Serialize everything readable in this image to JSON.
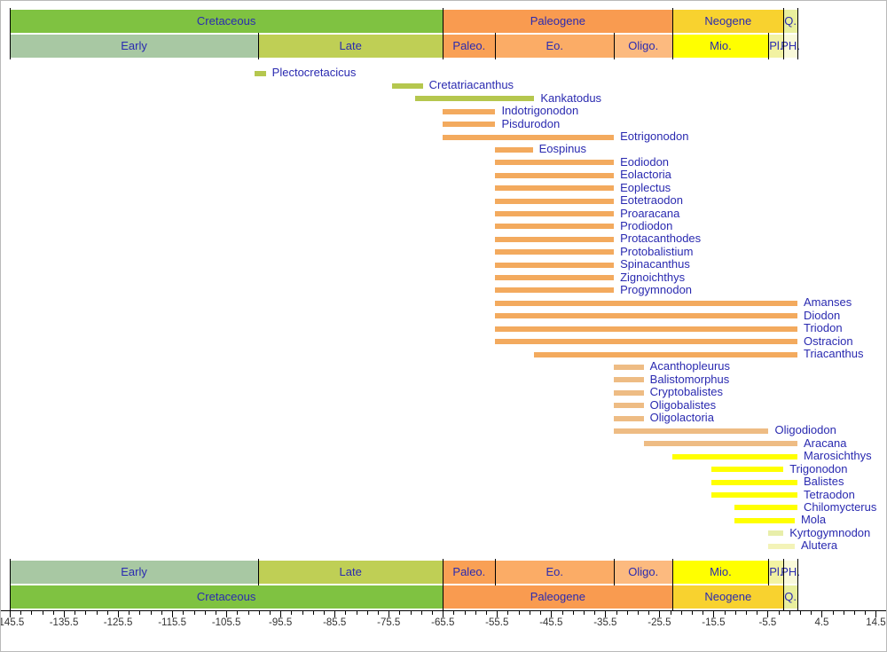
{
  "chart_data": {
    "type": "bar",
    "variant": "horizontal-range-timeline",
    "title": "",
    "xlabel": "",
    "ylabel": "",
    "x_axis": {
      "min": -145.5,
      "max": 14.5,
      "major_step": 10,
      "minor_step": 2,
      "tick_labels": [
        "-145.5",
        "-135.5",
        "-125.5",
        "-115.5",
        "-105.5",
        "-95.5",
        "-85.5",
        "-75.5",
        "-65.5",
        "-55.5",
        "-45.5",
        "-35.5",
        "-25.5",
        "-15.5",
        "-5.5",
        "4.5",
        "14.5"
      ]
    },
    "colors": {
      "cretaceous": "#7fc241",
      "paleogene": "#f99b50",
      "neogene": "#f8d22f",
      "quaternary": "#e9ef9d",
      "early_cretaceous": "#a8c8a3",
      "late_cretaceous": "#bfcf55",
      "paleocene": "#f9a055",
      "eocene": "#fbac66",
      "oligocene": "#fcba7f",
      "miocene": "#ffff00",
      "pliocene": "#f2f2a2",
      "ph": "#f9f9da",
      "cretaceous_taxon": "#b5c74e",
      "paleogene_taxon": "#f3aa5e",
      "oligocene_taxon": "#eebc84",
      "neogene_taxon": "#ffff00",
      "pliocene_taxon_green": "#e8eeaa",
      "pliocene_taxon_pale": "#f3f3b8",
      "label_text": "#2a2ab0",
      "axis_text": "#333333"
    },
    "periods": [
      {
        "name": "Cretaceous",
        "start": -145.5,
        "end": -65.5,
        "color": "cretaceous"
      },
      {
        "name": "Paleogene",
        "start": -65.5,
        "end": -23.03,
        "color": "paleogene"
      },
      {
        "name": "Neogene",
        "start": -23.03,
        "end": -2.588,
        "color": "neogene"
      },
      {
        "name": "Q.",
        "start": -2.588,
        "end": 0,
        "color": "quaternary"
      }
    ],
    "epochs": [
      {
        "name": "Early",
        "start": -145.5,
        "end": -99.6,
        "color": "early_cretaceous"
      },
      {
        "name": "Late",
        "start": -99.6,
        "end": -65.5,
        "color": "late_cretaceous"
      },
      {
        "name": "Paleo.",
        "start": -65.5,
        "end": -55.8,
        "color": "paleocene"
      },
      {
        "name": "Eo.",
        "start": -55.8,
        "end": -33.9,
        "color": "eocene"
      },
      {
        "name": "Oligo.",
        "start": -33.9,
        "end": -23.03,
        "color": "oligocene"
      },
      {
        "name": "Mio.",
        "start": -23.03,
        "end": -5.33,
        "color": "miocene"
      },
      {
        "name": "Pl.",
        "start": -5.33,
        "end": -2.588,
        "color": "pliocene"
      },
      {
        "name": "PH.",
        "start": -2.588,
        "end": 0,
        "color": "ph"
      }
    ],
    "taxa": [
      {
        "name": "Plectocretacicus",
        "start": -100.2,
        "end": -98.2,
        "color": "cretaceous_taxon"
      },
      {
        "name": "Cretatriacanthus",
        "start": -74.9,
        "end": -69.2,
        "color": "cretaceous_taxon"
      },
      {
        "name": "Kankatodus",
        "start": -70.6,
        "end": -48.6,
        "color": "cretaceous_taxon"
      },
      {
        "name": "Indotrigonodon",
        "start": -65.5,
        "end": -55.8,
        "color": "paleogene_taxon"
      },
      {
        "name": "Pisdurodon",
        "start": -65.5,
        "end": -55.8,
        "color": "paleogene_taxon"
      },
      {
        "name": "Eotrigonodon",
        "start": -65.5,
        "end": -33.9,
        "color": "paleogene_taxon"
      },
      {
        "name": "Eospinus",
        "start": -55.8,
        "end": -48.9,
        "color": "paleogene_taxon"
      },
      {
        "name": "Eodiodon",
        "start": -55.8,
        "end": -33.9,
        "color": "paleogene_taxon"
      },
      {
        "name": "Eolactoria",
        "start": -55.8,
        "end": -33.9,
        "color": "paleogene_taxon"
      },
      {
        "name": "Eoplectus",
        "start": -55.8,
        "end": -33.9,
        "color": "paleogene_taxon"
      },
      {
        "name": "Eotetraodon",
        "start": -55.8,
        "end": -33.9,
        "color": "paleogene_taxon"
      },
      {
        "name": "Proaracana",
        "start": -55.8,
        "end": -33.9,
        "color": "paleogene_taxon"
      },
      {
        "name": "Prodiodon",
        "start": -55.8,
        "end": -33.9,
        "color": "paleogene_taxon"
      },
      {
        "name": "Protacanthodes",
        "start": -55.8,
        "end": -33.9,
        "color": "paleogene_taxon"
      },
      {
        "name": "Protobalistium",
        "start": -55.8,
        "end": -33.9,
        "color": "paleogene_taxon"
      },
      {
        "name": "Spinacanthus",
        "start": -55.8,
        "end": -33.9,
        "color": "paleogene_taxon"
      },
      {
        "name": "Zignoichthys",
        "start": -55.8,
        "end": -33.9,
        "color": "paleogene_taxon"
      },
      {
        "name": "Progymnodon",
        "start": -55.8,
        "end": -33.9,
        "color": "paleogene_taxon"
      },
      {
        "name": "Amanses",
        "start": -55.8,
        "end": 0,
        "color": "paleogene_taxon"
      },
      {
        "name": "Diodon",
        "start": -55.8,
        "end": 0,
        "color": "paleogene_taxon"
      },
      {
        "name": "Triodon",
        "start": -55.8,
        "end": 0,
        "color": "paleogene_taxon"
      },
      {
        "name": "Ostracion",
        "start": -55.8,
        "end": 0,
        "color": "paleogene_taxon"
      },
      {
        "name": "Triacanthus",
        "start": -48.6,
        "end": 0,
        "color": "paleogene_taxon"
      },
      {
        "name": "Acanthopleurus",
        "start": -33.9,
        "end": -28.4,
        "color": "oligocene_taxon"
      },
      {
        "name": "Balistomorphus",
        "start": -33.9,
        "end": -28.4,
        "color": "oligocene_taxon"
      },
      {
        "name": "Cryptobalistes",
        "start": -33.9,
        "end": -28.4,
        "color": "oligocene_taxon"
      },
      {
        "name": "Oligobalistes",
        "start": -33.9,
        "end": -28.4,
        "color": "oligocene_taxon"
      },
      {
        "name": "Oligolactoria",
        "start": -33.9,
        "end": -28.4,
        "color": "oligocene_taxon"
      },
      {
        "name": "Oligodiodon",
        "start": -33.9,
        "end": -5.33,
        "color": "oligocene_taxon"
      },
      {
        "name": "Aracana",
        "start": -28.4,
        "end": 0,
        "color": "oligocene_taxon"
      },
      {
        "name": "Marosichthys",
        "start": -23.03,
        "end": 0,
        "color": "neogene_taxon"
      },
      {
        "name": "Trigonodon",
        "start": -15.97,
        "end": -2.588,
        "color": "neogene_taxon"
      },
      {
        "name": "Balistes",
        "start": -15.97,
        "end": 0,
        "color": "neogene_taxon"
      },
      {
        "name": "Tetraodon",
        "start": -15.97,
        "end": 0,
        "color": "neogene_taxon"
      },
      {
        "name": "Chilomycterus",
        "start": -11.6,
        "end": 0,
        "color": "neogene_taxon"
      },
      {
        "name": "Mola",
        "start": -11.6,
        "end": -0.5,
        "color": "neogene_taxon"
      },
      {
        "name": "Kyrtogymnodon",
        "start": -5.33,
        "end": -2.588,
        "color": "pliocene_taxon_green"
      },
      {
        "name": "Alutera",
        "start": -5.33,
        "end": -0.5,
        "color": "pliocene_taxon_pale"
      }
    ],
    "legend": "none",
    "grid": "off"
  }
}
